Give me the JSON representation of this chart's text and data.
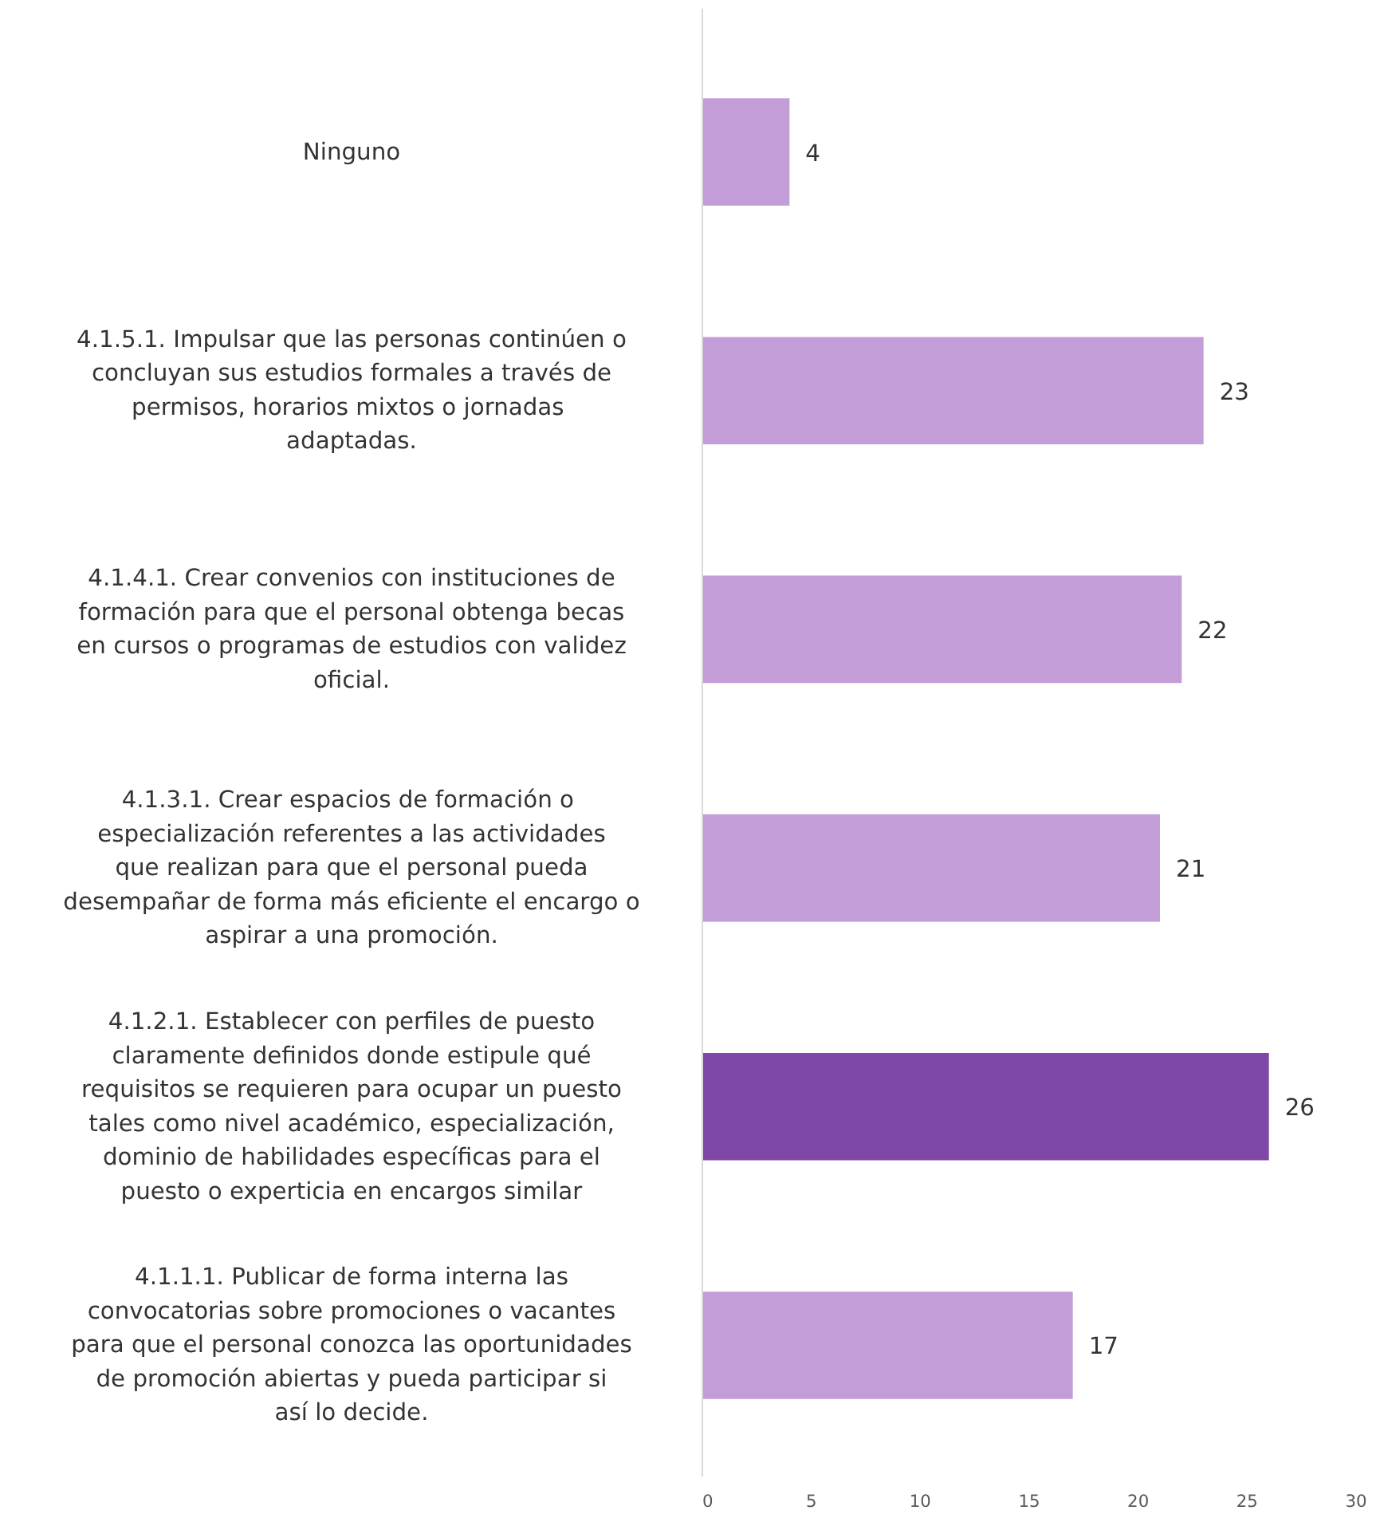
{
  "chart_data": {
    "type": "bar",
    "orientation": "horizontal",
    "categories": [
      "Ninguno",
      "4.1.5.1. Impulsar que las personas continúen o concluyan sus estudios formales a través de permisos, horarios mixtos o  jornadas adaptadas.",
      "4.1.4.1. Crear convenios con instituciones de formación para que el personal obtenga becas en cursos o programas de estudios con validez oficial.",
      "4.1.3.1.  Crear espacios de formación o especialización referentes a las actividades que realizan para que el personal pueda desempañar de forma más eficiente el encargo o aspirar a una promoción.",
      "4.1.2.1. Establecer con perfiles de puesto claramente definidos donde estipule qué requisitos se requieren para ocupar un puesto tales como nivel académico, especialización, dominio de habilidades específicas para el puesto o experticia en encargos similar",
      "4.1.1.1. Publicar de forma interna las convocatorias sobre promociones o vacantes para que el personal conozca las oportunidades de promoción abiertas y pueda participar si  así lo decide."
    ],
    "values": [
      4,
      23,
      22,
      21,
      26,
      17
    ],
    "colors": [
      "#c39dd7",
      "#c39dd7",
      "#c39dd7",
      "#c39dd7",
      "#7e48a8",
      "#c39dd7"
    ],
    "xlim": [
      0,
      30
    ],
    "xticks": [
      0,
      5,
      10,
      15,
      20,
      25,
      30
    ],
    "data_labels": true,
    "grid": false
  }
}
